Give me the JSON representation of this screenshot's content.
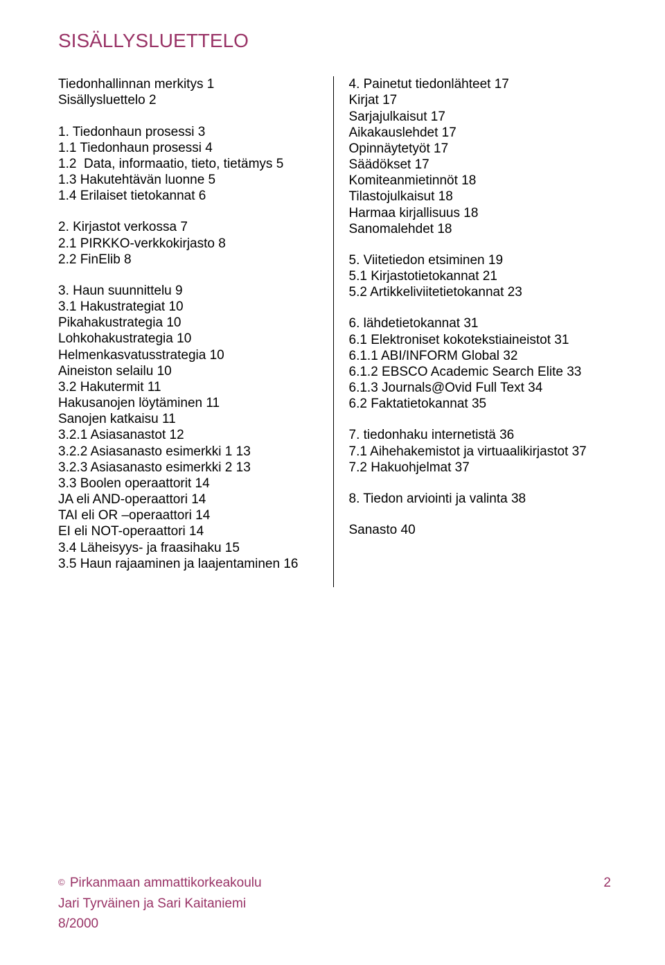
{
  "title": "SISÄLLYSLUETTELO",
  "colors": {
    "accent": "#993366",
    "text": "#000000",
    "background": "#ffffff",
    "divider": "#000000"
  },
  "fonts": {
    "family": "Arial",
    "title_size_pt": 21,
    "body_size_pt": 14
  },
  "left_column": [
    {
      "entries": [
        "Tiedonhallinnan merkitys 1",
        "Sisällysluettelo 2"
      ]
    },
    {
      "entries": [
        "1. Tiedonhaun prosessi 3",
        "1.1 Tiedonhaun prosessi 4",
        "1.2  Data, informaatio, tieto, tietämys 5",
        "1.3 Hakutehtävän luonne 5",
        "1.4 Erilaiset tietokannat 6"
      ]
    },
    {
      "entries": [
        "2. Kirjastot verkossa 7",
        "2.1 PIRKKO-verkkokirjasto 8",
        "2.2 FinElib 8"
      ]
    },
    {
      "entries": [
        "3. Haun suunnittelu 9",
        "3.1 Hakustrategiat 10",
        "Pikahakustrategia 10",
        "Lohkohakustrategia 10",
        "Helmenkasvatusstrategia 10",
        "Aineiston selailu 10",
        "3.2 Hakutermit 11",
        "Hakusanojen löytäminen 11",
        "Sanojen katkaisu 11",
        "3.2.1 Asiasanastot 12",
        "3.2.2 Asiasanasto esimerkki 1 13",
        "3.2.3 Asiasanasto esimerkki 2 13",
        "3.3 Boolen operaattorit 14",
        "JA eli AND-operaattori 14",
        "TAI eli OR –operaattori 14",
        "EI eli NOT-operaattori 14",
        "3.4 Läheisyys- ja fraasihaku 15",
        "3.5 Haun rajaaminen ja laajentaminen 16"
      ]
    }
  ],
  "right_column": [
    {
      "entries": [
        "4. Painetut tiedonlähteet 17",
        "Kirjat 17",
        "Sarjajulkaisut 17",
        "Aikakauslehdet 17",
        "Opinnäytetyöt 17",
        "Säädökset 17",
        "Komiteanmietinnöt 18",
        "Tilastojulkaisut 18",
        "Harmaa kirjallisuus 18",
        "Sanomalehdet 18"
      ]
    },
    {
      "entries": [
        "5. Viitetiedon etsiminen 19",
        "5.1 Kirjastotietokannat 21",
        "5.2 Artikkeliviitetietokannat 23"
      ]
    },
    {
      "entries": [
        "6. lähdetietokannat 31",
        "6.1 Elektroniset kokotekstiaineistot 31",
        "6.1.1 ABI/INFORM Global 32",
        "6.1.2 EBSCO Academic Search Elite 33",
        "6.1.3 Journals@Ovid Full Text 34",
        "6.2 Faktatietokannat 35"
      ]
    },
    {
      "entries": [
        "7. tiedonhaku internetistä 36",
        "7.1 Aihehakemistot ja virtuaalikirjastot 37",
        "7.2 Hakuohjelmat 37"
      ]
    },
    {
      "entries": [
        "8. Tiedon arviointi ja valinta 38"
      ]
    },
    {
      "entries": [
        "Sanasto 40"
      ]
    }
  ],
  "footer": {
    "copyright_symbol": "©",
    "institution": "Pirkanmaan ammattikorkeakoulu",
    "authors": "Jari Tyrväinen ja Sari Kaitaniemi",
    "date": "8/2000",
    "page_number": "2"
  }
}
